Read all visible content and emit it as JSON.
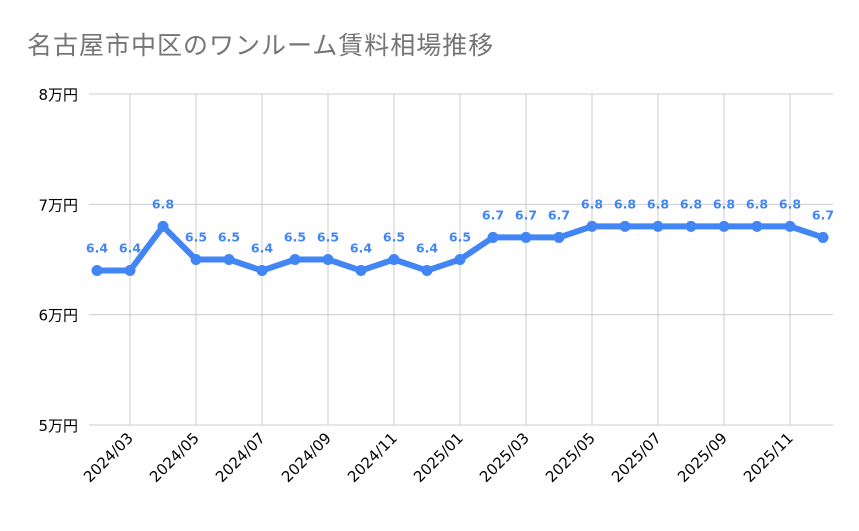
{
  "chart_data": {
    "type": "line",
    "title": "名古屋市中区のワンルーム賃料相場推移",
    "xlabel": "",
    "ylabel": "",
    "ylim": [
      5,
      8
    ],
    "y_ticks": [
      {
        "value": 5,
        "label": "5万円"
      },
      {
        "value": 6,
        "label": "6万円"
      },
      {
        "value": 7,
        "label": "7万円"
      },
      {
        "value": 8,
        "label": "8万円"
      }
    ],
    "x": [
      "2024/02",
      "2024/03",
      "2024/04",
      "2024/05",
      "2024/06",
      "2024/07",
      "2024/08",
      "2024/09",
      "2024/10",
      "2024/11",
      "2024/12",
      "2025/01",
      "2025/02",
      "2025/03",
      "2025/04",
      "2025/05",
      "2025/06",
      "2025/07",
      "2025/08",
      "2025/09",
      "2025/10",
      "2025/11",
      "2025/12"
    ],
    "x_tick_labels": [
      "2024/03",
      "2024/05",
      "2024/07",
      "2024/09",
      "2024/11",
      "2025/01",
      "2025/03",
      "2025/05",
      "2025/07",
      "2025/09",
      "2025/11"
    ],
    "series": [
      {
        "values": [
          6.4,
          6.4,
          6.8,
          6.5,
          6.5,
          6.4,
          6.5,
          6.5,
          6.4,
          6.5,
          6.4,
          6.5,
          6.7,
          6.7,
          6.7,
          6.8,
          6.8,
          6.8,
          6.8,
          6.8,
          6.8,
          6.8,
          6.7
        ],
        "color": "#4285f4"
      }
    ],
    "data_labels": true,
    "grid": true,
    "grid_color": "#cccccc",
    "legend": "none"
  }
}
